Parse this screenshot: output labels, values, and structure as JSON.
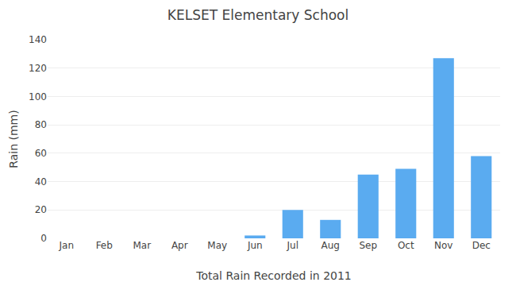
{
  "chart_data": {
    "type": "bar",
    "title": "KELSET Elementary School",
    "xlabel": "Total Rain Recorded in 2011",
    "ylabel": "Rain (mm)",
    "categories": [
      "Jan",
      "Feb",
      "Mar",
      "Apr",
      "May",
      "Jun",
      "Jul",
      "Aug",
      "Sep",
      "Oct",
      "Nov",
      "Dec"
    ],
    "values": [
      0,
      0,
      0,
      0,
      0,
      2,
      20,
      13,
      45,
      49,
      127,
      58
    ],
    "color": "#5aabf0",
    "ylim": [
      0,
      140
    ],
    "yticks": [
      0,
      20,
      40,
      60,
      80,
      100,
      120,
      140
    ],
    "grid": true
  }
}
